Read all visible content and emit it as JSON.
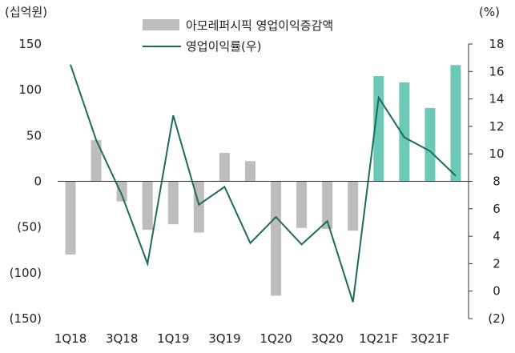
{
  "chart_data": {
    "type": "bar",
    "y_left_unit": "(십억원)",
    "y_right_unit": "(%)",
    "y_left_ticks": [
      "150",
      "100",
      "50",
      "0",
      "(50)",
      "(100)",
      "(150)"
    ],
    "y_left_tick_values": [
      150,
      100,
      50,
      0,
      -50,
      -100,
      -150
    ],
    "y_right_ticks": [
      "18",
      "16",
      "14",
      "12",
      "10",
      "8",
      "6",
      "4",
      "2",
      "0",
      "(2)"
    ],
    "y_right_tick_values": [
      18,
      16,
      14,
      12,
      10,
      8,
      6,
      4,
      2,
      0,
      -2
    ],
    "ylim_left": [
      -150,
      150
    ],
    "ylim_right": [
      -2,
      18
    ],
    "categories": [
      "1Q18",
      "2Q18",
      "3Q18",
      "4Q18",
      "1Q19",
      "2Q19",
      "3Q19",
      "4Q19",
      "1Q20",
      "2Q20",
      "3Q20",
      "4Q20",
      "1Q21F",
      "2Q21F",
      "3Q21F",
      "4Q21F"
    ],
    "x_tick_labels": [
      "1Q18",
      "3Q18",
      "1Q19",
      "3Q19",
      "1Q20",
      "3Q20",
      "1Q21F",
      "3Q21F"
    ],
    "x_tick_indices": [
      0,
      2,
      4,
      6,
      8,
      10,
      12,
      14
    ],
    "legend": {
      "bar_label": "아모레퍼시픽 영업이익증감액",
      "line_label": "영업이익률(우)"
    },
    "colors": {
      "bar_actual": "#bdbdbd",
      "bar_forecast": "#6bc9b6",
      "line": "#1f6b5a",
      "axis": "#333333"
    },
    "bar_values": [
      -80,
      45,
      -22,
      -53,
      -47,
      -56,
      31,
      22,
      -125,
      -51,
      -52,
      -54,
      115,
      108,
      80,
      127
    ],
    "forecast_start_index": 12,
    "line_values": [
      16.5,
      11,
      7,
      2,
      12.8,
      6.3,
      7.6,
      3.5,
      5.4,
      3.4,
      5.1,
      -0.8,
      14.1,
      11.2,
      10.2,
      8.4
    ]
  }
}
